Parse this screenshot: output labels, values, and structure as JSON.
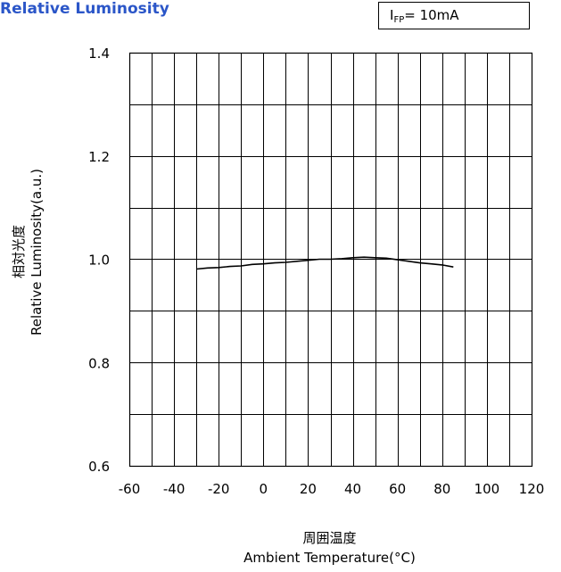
{
  "chart_data": {
    "type": "line",
    "title": "Relative Luminosity",
    "condition": {
      "prefix": "I",
      "subscript": "FP",
      "value": "= 10mA"
    },
    "ylabel_jp": "相対光度",
    "ylabel": "Relative Luminosity(a.u.)",
    "xlabel_jp": "周囲温度",
    "xlabel": "Ambient Temperature(°C)",
    "xlim": [
      -60,
      120
    ],
    "ylim": [
      0.6,
      1.4
    ],
    "x_ticks": [
      "-60",
      "-40",
      "-20",
      "0",
      "20",
      "40",
      "60",
      "80",
      "100",
      "120"
    ],
    "x_tick_values": [
      -60,
      -40,
      -20,
      0,
      20,
      40,
      60,
      80,
      100,
      120
    ],
    "y_ticks": [
      "0.6",
      "0.8",
      "1.0",
      "1.2",
      "1.4"
    ],
    "y_tick_values": [
      0.6,
      0.8,
      1.0,
      1.2,
      1.4
    ],
    "grid": true,
    "series": [
      {
        "x": [
          -30,
          -25,
          -20,
          -15,
          -10,
          -5,
          0,
          5,
          10,
          15,
          20,
          25,
          30,
          35,
          40,
          45,
          50,
          55,
          60,
          65,
          70,
          75,
          80,
          85
        ],
        "y": [
          0.981,
          0.983,
          0.984,
          0.986,
          0.987,
          0.99,
          0.991,
          0.993,
          0.994,
          0.996,
          0.998,
          1.0,
          1.0,
          1.001,
          1.003,
          1.004,
          1.003,
          1.002,
          0.999,
          0.996,
          0.993,
          0.991,
          0.989,
          0.985
        ],
        "color": "#000000"
      }
    ]
  }
}
